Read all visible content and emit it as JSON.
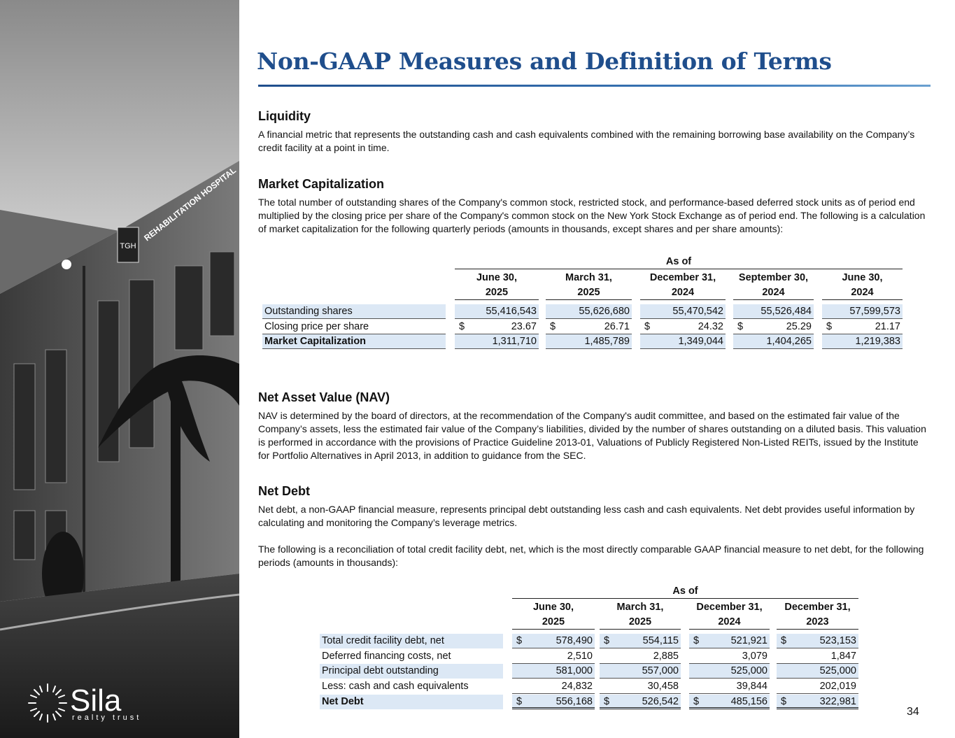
{
  "header": {
    "title": "Non-GAAP Measures and Definition of Terms"
  },
  "photo": {
    "sign": "REHABILITATION HOSPITAL",
    "badge": "TGH"
  },
  "logo": {
    "name": "Sila",
    "tagline": "realty trust"
  },
  "sections": [
    {
      "heading": "Liquidity",
      "paragraphs": [
        "A financial metric that represents the outstanding cash and cash equivalents combined with the remaining borrowing base availability on the Company’s credit facility at a point in time."
      ]
    },
    {
      "heading": "Market Capitalization",
      "paragraphs": [
        "The total number of outstanding shares of the Company's common stock, restricted stock, and performance-based deferred stock units as of period end multiplied by the closing price per share of the Company's common stock on the New York Stock Exchange as of period end. The following is a calculation of market capitalization for the following quarterly periods (amounts in thousands, except shares and per share amounts):"
      ]
    },
    {
      "heading": "Net Asset Value (NAV)",
      "paragraphs": [
        "NAV is determined by the board of directors, at the recommendation of the Company's audit committee, and based on the estimated fair value of the Company’s assets, less the estimated fair value of the Company’s liabilities, divided by the number of shares outstanding on a diluted basis. This valuation is performed in accordance with the provisions of Practice Guideline 2013-01, Valuations of Publicly Registered Non-Listed REITs, issued by the Institute for Portfolio Alternatives in April 2013, in addition to guidance from the SEC."
      ]
    },
    {
      "heading": "Net Debt",
      "paragraphs": [
        "Net debt, a non-GAAP financial measure, represents principal debt outstanding less cash and cash equivalents. Net debt provides useful information by calculating and monitoring the Company’s leverage metrics.",
        "The following is a reconciliation of total credit facility debt, net, which is the most directly comparable GAAP financial measure to net debt, for the following periods (amounts in thousands):"
      ]
    }
  ],
  "tables": [
    {
      "group": "As of",
      "columns": [
        [
          "June 30,",
          "2025"
        ],
        [
          "March 31,",
          "2025"
        ],
        [
          "December 31,",
          "2024"
        ],
        [
          "September 30,",
          "2024"
        ],
        [
          "June 30,",
          "2024"
        ]
      ],
      "rows": [
        {
          "label": "Outstanding shares",
          "cells": [
            [
              "55,416,543"
            ],
            [
              "55,626,680"
            ],
            [
              "55,470,542"
            ],
            [
              "55,526,484"
            ],
            [
              "57,599,573"
            ]
          ]
        },
        {
          "label": "Closing price per share",
          "cells": [
            [
              "$",
              "23.67"
            ],
            [
              "$",
              "26.71"
            ],
            [
              "$",
              "24.32"
            ],
            [
              "$",
              "25.29"
            ],
            [
              "$",
              "21.17"
            ]
          ]
        },
        {
          "label": "Market Capitalization",
          "cells": [
            [
              "1,311,710"
            ],
            [
              "1,485,789"
            ],
            [
              "1,349,044"
            ],
            [
              "1,404,265"
            ],
            [
              "1,219,383"
            ]
          ]
        }
      ]
    },
    {
      "group": "As of",
      "columns": [
        [
          "June 30,",
          "2025"
        ],
        [
          "March 31,",
          "2025"
        ],
        [
          "December 31,",
          "2024"
        ],
        [
          "December 31,",
          "2023"
        ]
      ],
      "rows": [
        {
          "label": "Total credit facility debt, net",
          "cells": [
            [
              "$",
              "578,490"
            ],
            [
              "$",
              "554,115"
            ],
            [
              "$",
              "521,921"
            ],
            [
              "$",
              "523,153"
            ]
          ]
        },
        {
          "label": "Deferred financing costs, net",
          "cells": [
            [
              "2,510"
            ],
            [
              "2,885"
            ],
            [
              "3,079"
            ],
            [
              "1,847"
            ]
          ]
        },
        {
          "label": "Principal debt outstanding",
          "cells": [
            [
              "581,000"
            ],
            [
              "557,000"
            ],
            [
              "525,000"
            ],
            [
              "525,000"
            ]
          ]
        },
        {
          "label": "Less: cash and cash equivalents",
          "cells": [
            [
              "24,832"
            ],
            [
              "30,458"
            ],
            [
              "39,844"
            ],
            [
              "202,019"
            ]
          ]
        },
        {
          "label": "Net Debt",
          "cells": [
            [
              "$",
              "556,168"
            ],
            [
              "$",
              "526,542"
            ],
            [
              "$",
              "485,156"
            ],
            [
              "$",
              "322,981"
            ]
          ]
        }
      ]
    }
  ],
  "page_number": "34"
}
